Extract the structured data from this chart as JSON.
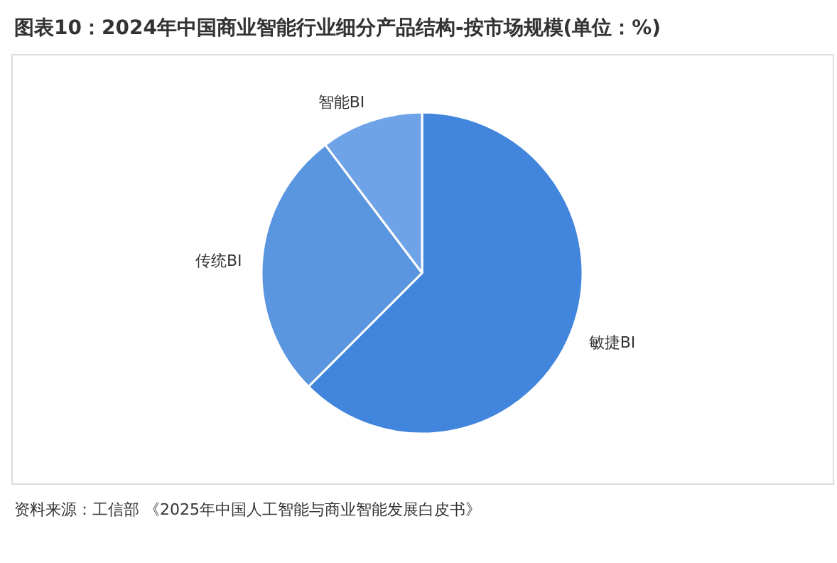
{
  "chart_data": {
    "type": "pie",
    "title": "图表10：2024年中国商业智能行业细分产品结构-按市场规模(单位：%)",
    "categories": [
      "敏捷BI",
      "传统BI",
      "智能BI"
    ],
    "values": [
      62.5,
      27.2,
      10.3
    ],
    "colors": [
      "#4285dc",
      "#5a95e0",
      "#6ea3e8"
    ],
    "legend": false,
    "annotations": [
      "资料来源：工信部 《2025年中国人工智能与商业智能发展白皮书》"
    ]
  }
}
